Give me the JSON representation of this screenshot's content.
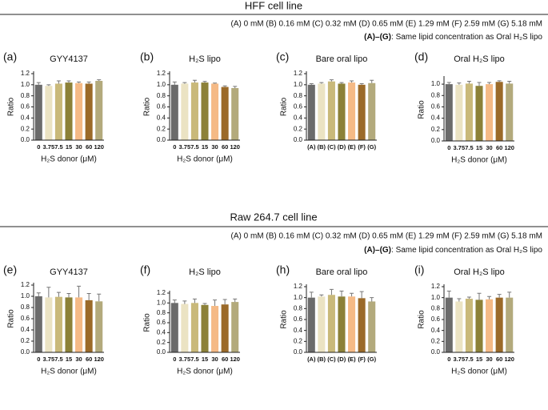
{
  "sections": [
    {
      "title": "HFF cell line",
      "conditions": "(A) 0 mM (B) 0.16 mM (C) 0.32 mM (D) 0.65 mM (E) 1.29 mM (F)  2.59 mM (G) 5.18 mM",
      "note_bold": "(A)–(G)",
      "note": ": Same lipid concentration as Oral H₂S lipo"
    },
    {
      "title": "Raw 264.7 cell line",
      "conditions": "(A) 0 mM (B) 0.16 mM (C) 0.32 mM (D) 0.65 mM (E) 1.29 mM (F)  2.59 mM (G) 5.18 mM",
      "note_bold": "(A)–(G)",
      "note": ": Same lipid concentration as Oral H₂S lipo"
    }
  ],
  "chart_data": [
    {
      "type": "bar",
      "panel": "(a)",
      "title": "GYY4137",
      "ylabel": "Ratio",
      "xlabel": "H₂S donor (μM)",
      "categories": [
        "0",
        "3.75",
        "7.5",
        "15",
        "30",
        "60",
        "120"
      ],
      "values": [
        1.0,
        0.98,
        1.02,
        1.04,
        1.03,
        1.02,
        1.07
      ],
      "errors": [
        0.04,
        0.02,
        0.05,
        0.03,
        0.02,
        0.03,
        0.02
      ],
      "colors": [
        "#6b6b6b",
        "#ebe3c3",
        "#c9b97a",
        "#8c8138",
        "#f5ba86",
        "#9b6a29",
        "#b3aa7c"
      ],
      "ylim": [
        0,
        1.2
      ],
      "yticks": [
        {
          "value": 0,
          "label": "0.0"
        },
        0.2,
        0.4,
        0.6,
        0.8,
        {
          "value": 1,
          "label": "1.0"
        },
        1.2
      ]
    },
    {
      "type": "bar",
      "panel": "(b)",
      "title": "H₂S lipo",
      "ylabel": "Ratio",
      "xlabel": "H₂S donor (μM)",
      "categories": [
        "0",
        "3.75",
        "7.5",
        "15",
        "30",
        "60",
        "120"
      ],
      "values": [
        1.0,
        1.02,
        1.04,
        1.04,
        1.02,
        0.96,
        0.94
      ],
      "errors": [
        0.05,
        0.02,
        0.04,
        0.02,
        0.01,
        0.02,
        0.03
      ],
      "colors": [
        "#6b6b6b",
        "#ebe3c3",
        "#c9b97a",
        "#8c8138",
        "#f5ba86",
        "#9b6a29",
        "#b3aa7c"
      ],
      "ylim": [
        0,
        1.2
      ],
      "yticks": [
        {
          "value": 0,
          "label": "0.0"
        },
        0.2,
        0.4,
        0.6,
        0.8,
        {
          "value": 1,
          "label": "1.0"
        },
        1.2
      ]
    },
    {
      "type": "bar",
      "panel": "(c)",
      "title": "Bare oral lipo",
      "ylabel": "Ratio",
      "categories": [
        "(A)",
        "(B)",
        "(C)",
        "(D)",
        "(E)",
        "(F)",
        "(G)"
      ],
      "values": [
        1.0,
        1.02,
        1.06,
        1.02,
        1.04,
        1.0,
        1.03
      ],
      "errors": [
        0.02,
        0.02,
        0.03,
        0.02,
        0.03,
        0.02,
        0.05
      ],
      "colors": [
        "#6b6b6b",
        "#ebe3c3",
        "#c9b97a",
        "#8c8138",
        "#f5ba86",
        "#9b6a29",
        "#b3aa7c"
      ],
      "ylim": [
        0,
        1.2
      ],
      "yticks": [
        {
          "value": 0,
          "label": "0.0"
        },
        0.2,
        0.4,
        0.6,
        0.8,
        {
          "value": 1,
          "label": "1.0"
        },
        1.2
      ]
    },
    {
      "type": "bar",
      "panel": "(d)",
      "title": "Oral H₂S lipo",
      "ylabel": "Ratio",
      "xlabel": "H₂S donor (μM)",
      "categories": [
        "0",
        "3.75",
        "7.5",
        "15",
        "30",
        "60",
        "120"
      ],
      "values": [
        1.0,
        0.99,
        1.01,
        0.97,
        1.0,
        1.04,
        1.01
      ],
      "errors": [
        0.03,
        0.03,
        0.04,
        0.06,
        0.03,
        0.02,
        0.04
      ],
      "colors": [
        "#6b6b6b",
        "#ebe3c3",
        "#c9b97a",
        "#8c8138",
        "#f5ba86",
        "#9b6a29",
        "#b3aa7c"
      ],
      "ylim": [
        0,
        1.1
      ],
      "yticks": [
        {
          "value": 0,
          "label": "0.0"
        },
        0.2,
        0.4,
        0.6,
        0.8,
        {
          "value": 1,
          "label": "1.0"
        }
      ]
    },
    {
      "type": "bar",
      "panel": "(e)",
      "title": "GYY4137",
      "ylabel": "Ratio",
      "xlabel": "H₂S donor (μM)",
      "categories": [
        "0",
        "3.75",
        "7.5",
        "15",
        "30",
        "60",
        "120"
      ],
      "values": [
        1.0,
        0.98,
        0.99,
        0.98,
        0.98,
        0.93,
        0.91
      ],
      "errors": [
        0.06,
        0.18,
        0.08,
        0.07,
        0.2,
        0.12,
        0.13
      ],
      "colors": [
        "#6b6b6b",
        "#ebe3c3",
        "#c9b97a",
        "#8c8138",
        "#f5ba86",
        "#9b6a29",
        "#b3aa7c"
      ],
      "ylim": [
        0,
        1.2
      ],
      "yticks": [
        {
          "value": 0,
          "label": "0.0"
        },
        0.2,
        0.4,
        0.6,
        0.8,
        {
          "value": 1,
          "label": "1.0"
        },
        1.2
      ]
    },
    {
      "type": "bar",
      "panel": "(f)",
      "title": "H₂S lipo",
      "ylabel": "Ratio",
      "xlabel": "H₂S donor (μM)",
      "categories": [
        "0",
        "3.75",
        "7.5",
        "15",
        "30",
        "60",
        "120"
      ],
      "values": [
        1.0,
        0.98,
        1.0,
        0.96,
        0.94,
        0.97,
        1.02
      ],
      "errors": [
        0.06,
        0.06,
        0.08,
        0.03,
        0.12,
        0.1,
        0.06
      ],
      "colors": [
        "#6b6b6b",
        "#ebe3c3",
        "#c9b97a",
        "#8c8138",
        "#f5ba86",
        "#9b6a29",
        "#b3aa7c"
      ],
      "ylim": [
        0,
        1.2
      ],
      "yticks": [
        {
          "value": 0,
          "label": "0.0"
        },
        0.2,
        0.4,
        0.6,
        0.8,
        {
          "value": 1,
          "label": "1.0"
        },
        1.2
      ]
    },
    {
      "type": "bar",
      "panel": "(h)",
      "title": "Bare oral lipo",
      "ylabel": "Ratio",
      "categories": [
        "(A)",
        "(B)",
        "(C)",
        "(D)",
        "(E)",
        "(F)",
        "(G)"
      ],
      "values": [
        1.0,
        1.02,
        1.05,
        1.02,
        1.02,
        0.99,
        0.93
      ],
      "errors": [
        0.1,
        0.03,
        0.1,
        0.1,
        0.06,
        0.12,
        0.07
      ],
      "colors": [
        "#6b6b6b",
        "#ebe3c3",
        "#c9b97a",
        "#8c8138",
        "#f5ba86",
        "#9b6a29",
        "#b3aa7c"
      ],
      "ylim": [
        0,
        1.2
      ],
      "yticks": [
        {
          "value": 0,
          "label": "0.0"
        },
        0.2,
        0.4,
        0.6,
        0.8,
        {
          "value": 1,
          "label": "1.0"
        },
        1.2
      ]
    },
    {
      "type": "bar",
      "panel": "(i)",
      "title": "Oral H₂S lipo",
      "ylabel": "Ratio",
      "xlabel": "H₂S donor (μM)",
      "categories": [
        "0",
        "3.75",
        "7.5",
        "15",
        "30",
        "60",
        "120"
      ],
      "values": [
        1.0,
        0.93,
        0.98,
        0.96,
        0.97,
        1.0,
        1.0
      ],
      "errors": [
        0.12,
        0.05,
        0.03,
        0.12,
        0.05,
        0.06,
        0.1
      ],
      "colors": [
        "#6b6b6b",
        "#ebe3c3",
        "#c9b97a",
        "#8c8138",
        "#f5ba86",
        "#9b6a29",
        "#b3aa7c"
      ],
      "ylim": [
        0,
        1.2
      ],
      "yticks": [
        {
          "value": 0,
          "label": "0.0"
        },
        0.2,
        0.4,
        0.6,
        0.8,
        {
          "value": 1,
          "label": "1.0"
        },
        1.2
      ]
    }
  ]
}
